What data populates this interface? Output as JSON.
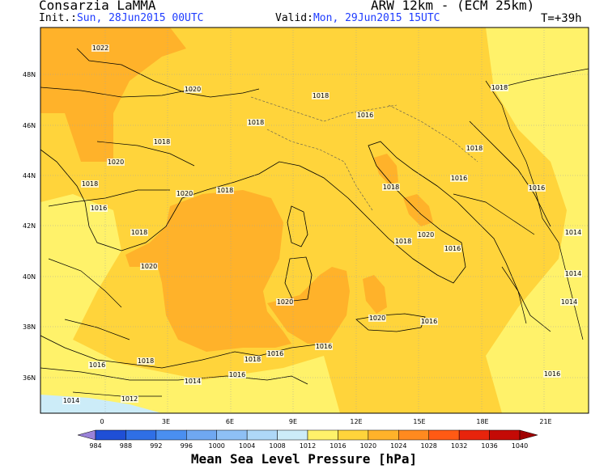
{
  "header": {
    "org": "Consarzia LaMMA",
    "model": "ARW 12km - (ECM 25km)",
    "init_label": "Init.:",
    "init_value": "Sun, 28Jun2015 00UTC",
    "valid_label": "Valid:",
    "valid_value": "Mon, 29Jun2015 15UTC",
    "lead_time": "T=+39h"
  },
  "map": {
    "lat_labels": [
      "48N",
      "46N",
      "44N",
      "42N",
      "40N",
      "38N",
      "36N"
    ],
    "lon_labels": [
      "0",
      "3E",
      "6E",
      "9E",
      "12E",
      "15E",
      "18E",
      "21E"
    ],
    "isobars": [
      {
        "text": "1022"
      },
      {
        "text": "1020"
      },
      {
        "text": "1018"
      },
      {
        "text": "1018"
      },
      {
        "text": "1018"
      },
      {
        "text": "1020"
      },
      {
        "text": "1018"
      },
      {
        "text": "1016"
      },
      {
        "text": "1020"
      },
      {
        "text": "1018"
      },
      {
        "text": "1018"
      },
      {
        "text": "1020"
      },
      {
        "text": "1020"
      },
      {
        "text": "1018"
      },
      {
        "text": "1020"
      },
      {
        "text": "1016"
      },
      {
        "text": "1018"
      },
      {
        "text": "1020"
      },
      {
        "text": "1016"
      },
      {
        "text": "1018"
      },
      {
        "text": "1016"
      },
      {
        "text": "1018"
      },
      {
        "text": "1016"
      },
      {
        "text": "1014"
      },
      {
        "text": "1012"
      },
      {
        "text": "1014"
      },
      {
        "text": "1016"
      },
      {
        "text": "1016"
      },
      {
        "text": "1018"
      },
      {
        "text": "1018"
      },
      {
        "text": "1016"
      },
      {
        "text": "1016"
      },
      {
        "text": "1014"
      },
      {
        "text": "1016"
      },
      {
        "text": "1014"
      },
      {
        "text": "1014"
      },
      {
        "text": "1016"
      }
    ]
  },
  "colorbar": {
    "values": [
      "984",
      "988",
      "992",
      "996",
      "1000",
      "1004",
      "1008",
      "1012",
      "1016",
      "1020",
      "1024",
      "1028",
      "1032",
      "1036",
      "1040"
    ],
    "colors": [
      "#9a82d8",
      "#1f4fd6",
      "#2f6fe6",
      "#4a8ff0",
      "#6fa8f2",
      "#8ec0f5",
      "#aed8f7",
      "#ccecf8",
      "#fff26a",
      "#ffd43b",
      "#ffb22a",
      "#ff8a1f",
      "#ff5a14",
      "#e8240c",
      "#c40a06",
      "#a00000"
    ],
    "title": "Mean Sea Level Pressure [hPa]"
  }
}
